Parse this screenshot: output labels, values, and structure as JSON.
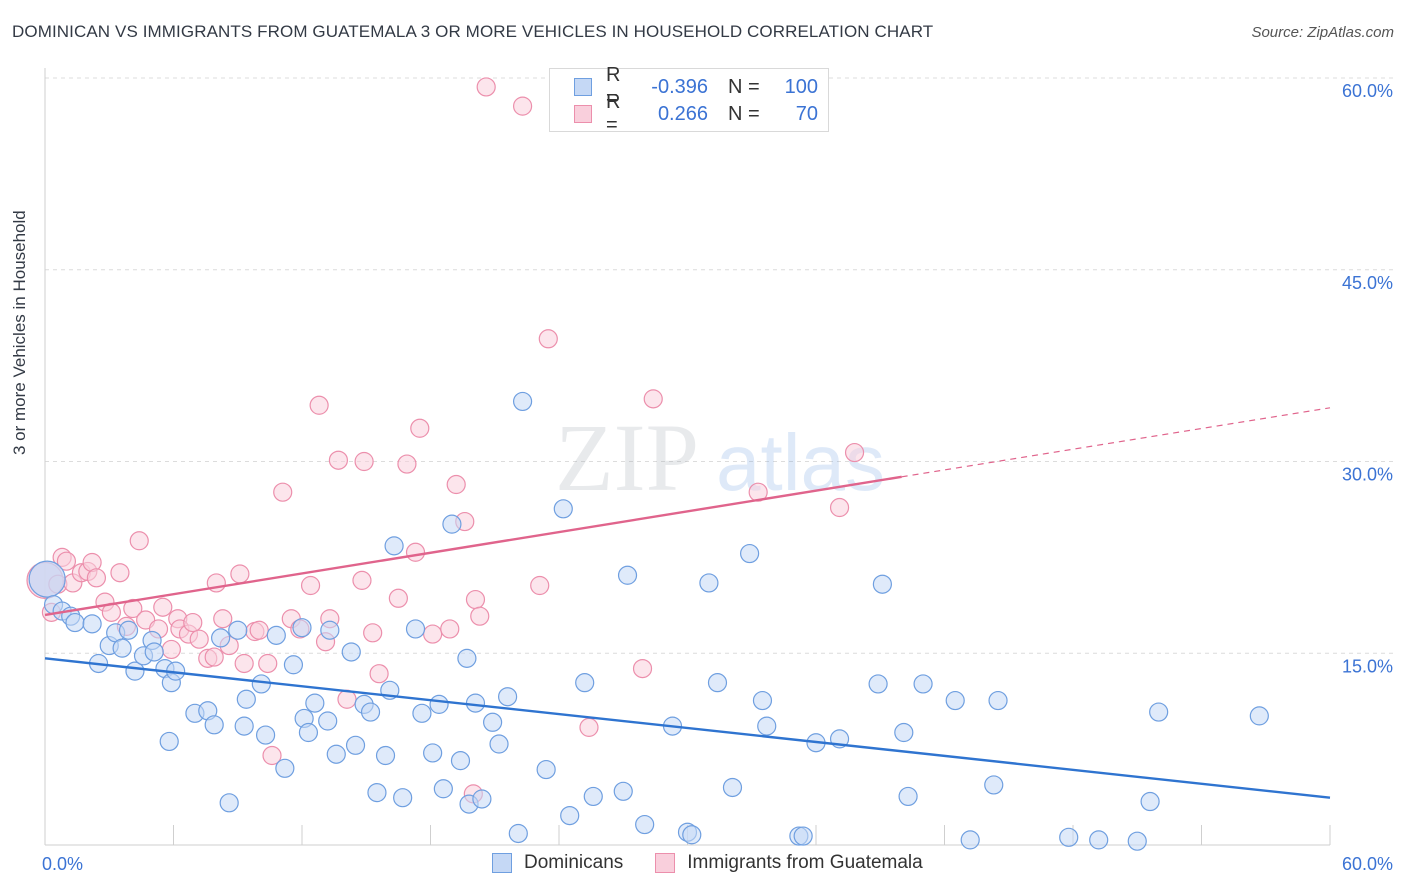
{
  "title": "DOMINICAN VS IMMIGRANTS FROM GUATEMALA 3 OR MORE VEHICLES IN HOUSEHOLD CORRELATION CHART",
  "source": "Source: ZipAtlas.com",
  "watermark": {
    "zip": "ZIP",
    "atlas": "atlas"
  },
  "legend_top": {
    "rows": [
      {
        "r_label": "R =",
        "r_value": "-0.396",
        "n_label": "N =",
        "n_value": "100",
        "color": "#6f9fe0",
        "fill": "#c5d8f5"
      },
      {
        "r_label": "R =",
        "r_value": "0.266",
        "n_label": "N =",
        "n_value": "70",
        "color": "#ec8fac",
        "fill": "#f9cfdc"
      }
    ]
  },
  "legend_bottom": [
    {
      "label": "Dominicans",
      "color": "#6f9fe0",
      "fill": "#c5d8f5"
    },
    {
      "label": "Immigrants from Guatemala",
      "color": "#ec8fac",
      "fill": "#f9cfdc"
    }
  ],
  "chart_data": {
    "type": "scatter",
    "title": "DOMINICAN VS IMMIGRANTS FROM GUATEMALA 3 OR MORE VEHICLES IN HOUSEHOLD CORRELATION CHART",
    "xlabel": "",
    "ylabel": "3 or more Vehicles in Household",
    "xlim": [
      0,
      60
    ],
    "ylim": [
      0,
      60
    ],
    "x_ticks": [
      "0.0%",
      "60.0%"
    ],
    "y_ticks": [
      {
        "value": 15,
        "label": "15.0%"
      },
      {
        "value": 30,
        "label": "30.0%"
      },
      {
        "value": 45,
        "label": "45.0%"
      },
      {
        "value": 60,
        "label": "60.0%"
      }
    ],
    "grid": true,
    "legend_position": "bottom",
    "series": [
      {
        "name": "Dominicans",
        "color": "#6f9fe0",
        "fill": "#c5d8f5",
        "trend": {
          "x0": 0,
          "y0": 14.6,
          "x1": 60,
          "y1": 3.7,
          "dashed_from": null
        },
        "points": [
          [
            0.1,
            20.8
          ],
          [
            0.4,
            18.8
          ],
          [
            0.8,
            18.3
          ],
          [
            1.2,
            17.9
          ],
          [
            1.4,
            17.4
          ],
          [
            2.2,
            17.3
          ],
          [
            2.5,
            14.2
          ],
          [
            3.0,
            15.6
          ],
          [
            3.3,
            16.6
          ],
          [
            3.6,
            15.4
          ],
          [
            3.9,
            16.8
          ],
          [
            4.2,
            13.6
          ],
          [
            4.6,
            14.8
          ],
          [
            5.0,
            16.0
          ],
          [
            5.1,
            15.1
          ],
          [
            5.6,
            13.8
          ],
          [
            5.9,
            12.7
          ],
          [
            6.1,
            13.6
          ],
          [
            5.8,
            8.1
          ],
          [
            7.0,
            10.3
          ],
          [
            7.6,
            10.5
          ],
          [
            7.9,
            9.4
          ],
          [
            8.2,
            16.2
          ],
          [
            8.6,
            3.3
          ],
          [
            9.3,
            9.3
          ],
          [
            9.0,
            16.8
          ],
          [
            9.4,
            11.4
          ],
          [
            10.1,
            12.6
          ],
          [
            10.3,
            8.6
          ],
          [
            10.8,
            16.4
          ],
          [
            11.2,
            6.0
          ],
          [
            11.6,
            14.1
          ],
          [
            12.1,
            9.9
          ],
          [
            12.3,
            8.8
          ],
          [
            12.6,
            11.1
          ],
          [
            13.2,
            9.7
          ],
          [
            13.3,
            16.8
          ],
          [
            13.6,
            7.1
          ],
          [
            14.3,
            15.1
          ],
          [
            14.5,
            7.8
          ],
          [
            14.9,
            11.0
          ],
          [
            15.2,
            10.4
          ],
          [
            15.5,
            4.1
          ],
          [
            15.9,
            7.0
          ],
          [
            16.1,
            12.1
          ],
          [
            16.3,
            23.4
          ],
          [
            16.7,
            3.7
          ],
          [
            17.3,
            16.9
          ],
          [
            17.6,
            10.3
          ],
          [
            18.1,
            7.2
          ],
          [
            18.4,
            11.0
          ],
          [
            18.6,
            4.4
          ],
          [
            19.0,
            25.1
          ],
          [
            19.4,
            6.6
          ],
          [
            19.7,
            14.6
          ],
          [
            19.8,
            3.2
          ],
          [
            20.1,
            11.1
          ],
          [
            20.4,
            3.6
          ],
          [
            20.9,
            9.6
          ],
          [
            21.2,
            7.9
          ],
          [
            21.6,
            11.6
          ],
          [
            22.1,
            0.9
          ],
          [
            22.3,
            34.7
          ],
          [
            23.4,
            5.9
          ],
          [
            24.2,
            26.3
          ],
          [
            24.5,
            2.3
          ],
          [
            25.2,
            12.7
          ],
          [
            25.6,
            3.8
          ],
          [
            27.0,
            4.2
          ],
          [
            27.2,
            21.1
          ],
          [
            28.0,
            1.6
          ],
          [
            29.3,
            9.3
          ],
          [
            30.0,
            1.0
          ],
          [
            30.2,
            0.8
          ],
          [
            31.0,
            20.5
          ],
          [
            31.4,
            12.7
          ],
          [
            32.1,
            4.5
          ],
          [
            32.9,
            22.8
          ],
          [
            33.5,
            11.3
          ],
          [
            33.7,
            9.3
          ],
          [
            35.2,
            0.7
          ],
          [
            35.4,
            0.7
          ],
          [
            36.0,
            8.0
          ],
          [
            37.1,
            8.3
          ],
          [
            38.9,
            12.6
          ],
          [
            39.1,
            20.4
          ],
          [
            40.1,
            8.8
          ],
          [
            40.3,
            3.8
          ],
          [
            41.0,
            12.6
          ],
          [
            42.5,
            11.3
          ],
          [
            43.2,
            0.4
          ],
          [
            44.3,
            4.7
          ],
          [
            44.5,
            11.3
          ],
          [
            47.8,
            0.6
          ],
          [
            49.2,
            0.4
          ],
          [
            51.0,
            0.3
          ],
          [
            51.6,
            3.4
          ],
          [
            52.0,
            10.4
          ],
          [
            56.7,
            10.1
          ],
          [
            12.0,
            17.0
          ]
        ]
      },
      {
        "name": "Immigrants from Guatemala",
        "color": "#ec8fac",
        "fill": "#f9cfdc",
        "trend": {
          "x0": 0,
          "y0": 18.0,
          "x1": 60,
          "y1": 34.2,
          "dashed_from": 40
        },
        "points": [
          [
            0.0,
            20.7
          ],
          [
            0.3,
            18.2
          ],
          [
            0.6,
            20.4
          ],
          [
            0.8,
            22.5
          ],
          [
            1.0,
            22.2
          ],
          [
            1.3,
            20.5
          ],
          [
            1.7,
            21.3
          ],
          [
            2.0,
            21.4
          ],
          [
            2.2,
            22.1
          ],
          [
            2.4,
            20.9
          ],
          [
            2.8,
            19.0
          ],
          [
            3.1,
            18.2
          ],
          [
            3.5,
            21.3
          ],
          [
            3.8,
            17.1
          ],
          [
            4.1,
            18.5
          ],
          [
            4.4,
            23.8
          ],
          [
            4.7,
            17.6
          ],
          [
            5.3,
            16.9
          ],
          [
            5.5,
            18.6
          ],
          [
            5.9,
            15.3
          ],
          [
            6.2,
            17.7
          ],
          [
            6.3,
            16.9
          ],
          [
            6.7,
            16.5
          ],
          [
            6.9,
            17.4
          ],
          [
            7.2,
            16.1
          ],
          [
            7.6,
            14.6
          ],
          [
            7.9,
            14.7
          ],
          [
            8.0,
            20.5
          ],
          [
            8.3,
            17.7
          ],
          [
            8.6,
            15.6
          ],
          [
            9.1,
            21.2
          ],
          [
            9.3,
            14.2
          ],
          [
            9.8,
            16.7
          ],
          [
            10.0,
            16.8
          ],
          [
            10.4,
            14.2
          ],
          [
            10.6,
            7.0
          ],
          [
            11.1,
            27.6
          ],
          [
            11.5,
            17.7
          ],
          [
            11.9,
            16.9
          ],
          [
            12.4,
            20.3
          ],
          [
            12.8,
            34.4
          ],
          [
            13.1,
            15.9
          ],
          [
            13.3,
            17.7
          ],
          [
            13.7,
            30.1
          ],
          [
            14.1,
            11.4
          ],
          [
            14.8,
            20.7
          ],
          [
            14.9,
            30.0
          ],
          [
            15.3,
            16.6
          ],
          [
            15.6,
            13.4
          ],
          [
            16.5,
            19.3
          ],
          [
            16.9,
            29.8
          ],
          [
            17.3,
            22.9
          ],
          [
            17.5,
            32.6
          ],
          [
            18.1,
            16.5
          ],
          [
            18.9,
            16.9
          ],
          [
            19.2,
            28.2
          ],
          [
            19.6,
            25.3
          ],
          [
            20.1,
            19.2
          ],
          [
            20.3,
            17.9
          ],
          [
            20.0,
            4.0
          ],
          [
            22.3,
            57.8
          ],
          [
            23.1,
            20.3
          ],
          [
            23.5,
            39.6
          ],
          [
            25.4,
            9.2
          ],
          [
            27.9,
            13.8
          ],
          [
            28.4,
            34.9
          ],
          [
            33.3,
            27.6
          ],
          [
            37.1,
            26.4
          ],
          [
            37.8,
            30.7
          ],
          [
            20.6,
            59.3
          ]
        ]
      }
    ]
  }
}
